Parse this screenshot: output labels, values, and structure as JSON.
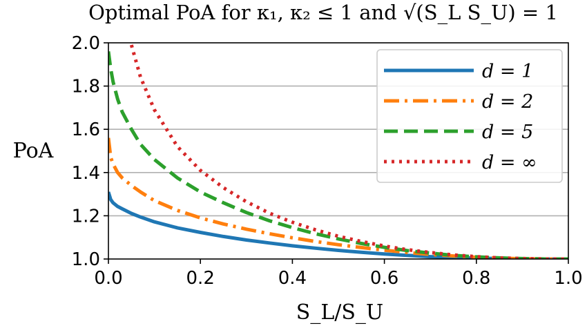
{
  "chart_data": {
    "type": "line",
    "title": "Optimal PoA for κ₁, κ₂ ≤ 1 and √(S_L S_U) = 1",
    "xlabel": "S_L/S_U",
    "ylabel": "PoA",
    "xlim": [
      0.0,
      1.0
    ],
    "ylim": [
      1.0,
      2.0
    ],
    "xticks": [
      "0.0",
      "0.2",
      "0.4",
      "0.6",
      "0.8",
      "1.0"
    ],
    "yticks": [
      "1.0",
      "1.2",
      "1.4",
      "1.6",
      "1.8",
      "2.0"
    ],
    "grid": "horizontal",
    "legend_position": "top-right",
    "x": [
      0.0,
      0.005,
      0.01,
      0.02,
      0.03,
      0.05,
      0.07,
      0.1,
      0.15,
      0.2,
      0.25,
      0.3,
      0.35,
      0.4,
      0.45,
      0.5,
      0.55,
      0.6,
      0.65,
      0.7,
      0.75,
      0.8,
      0.85,
      0.9,
      0.95,
      1.0
    ],
    "series": [
      {
        "name": "d = 1",
        "color": "#1f77b4",
        "style": "solid",
        "values": [
          1.31,
          1.275,
          1.26,
          1.243,
          1.232,
          1.211,
          1.194,
          1.172,
          1.144,
          1.123,
          1.104,
          1.088,
          1.074,
          1.061,
          1.05,
          1.04,
          1.031,
          1.023,
          1.017,
          1.011,
          1.007,
          1.004,
          1.002,
          1.001,
          1.0,
          1.0
        ]
      },
      {
        "name": "d = 2",
        "color": "#ff7f0e",
        "style": "dashdot",
        "values": [
          1.56,
          1.47,
          1.44,
          1.4,
          1.375,
          1.34,
          1.31,
          1.27,
          1.225,
          1.19,
          1.162,
          1.138,
          1.117,
          1.098,
          1.081,
          1.066,
          1.053,
          1.041,
          1.03,
          1.021,
          1.014,
          1.008,
          1.004,
          1.001,
          1.0,
          1.0
        ]
      },
      {
        "name": "d = 5",
        "color": "#2ca02c",
        "style": "dashed",
        "values": [
          1.96,
          1.88,
          1.82,
          1.74,
          1.68,
          1.6,
          1.53,
          1.46,
          1.375,
          1.31,
          1.26,
          1.215,
          1.177,
          1.145,
          1.117,
          1.093,
          1.072,
          1.054,
          1.039,
          1.027,
          1.017,
          1.01,
          1.005,
          1.002,
          1.0,
          1.0
        ]
      },
      {
        "name": "d = ∞",
        "color": "#d62728",
        "style": "dotted",
        "values": [
          null,
          null,
          null,
          null,
          null,
          1.99,
          1.84,
          1.69,
          1.52,
          1.41,
          1.33,
          1.265,
          1.212,
          1.17,
          1.135,
          1.105,
          1.081,
          1.06,
          1.043,
          1.03,
          1.019,
          1.011,
          1.005,
          1.002,
          1.0,
          1.0
        ]
      }
    ]
  }
}
